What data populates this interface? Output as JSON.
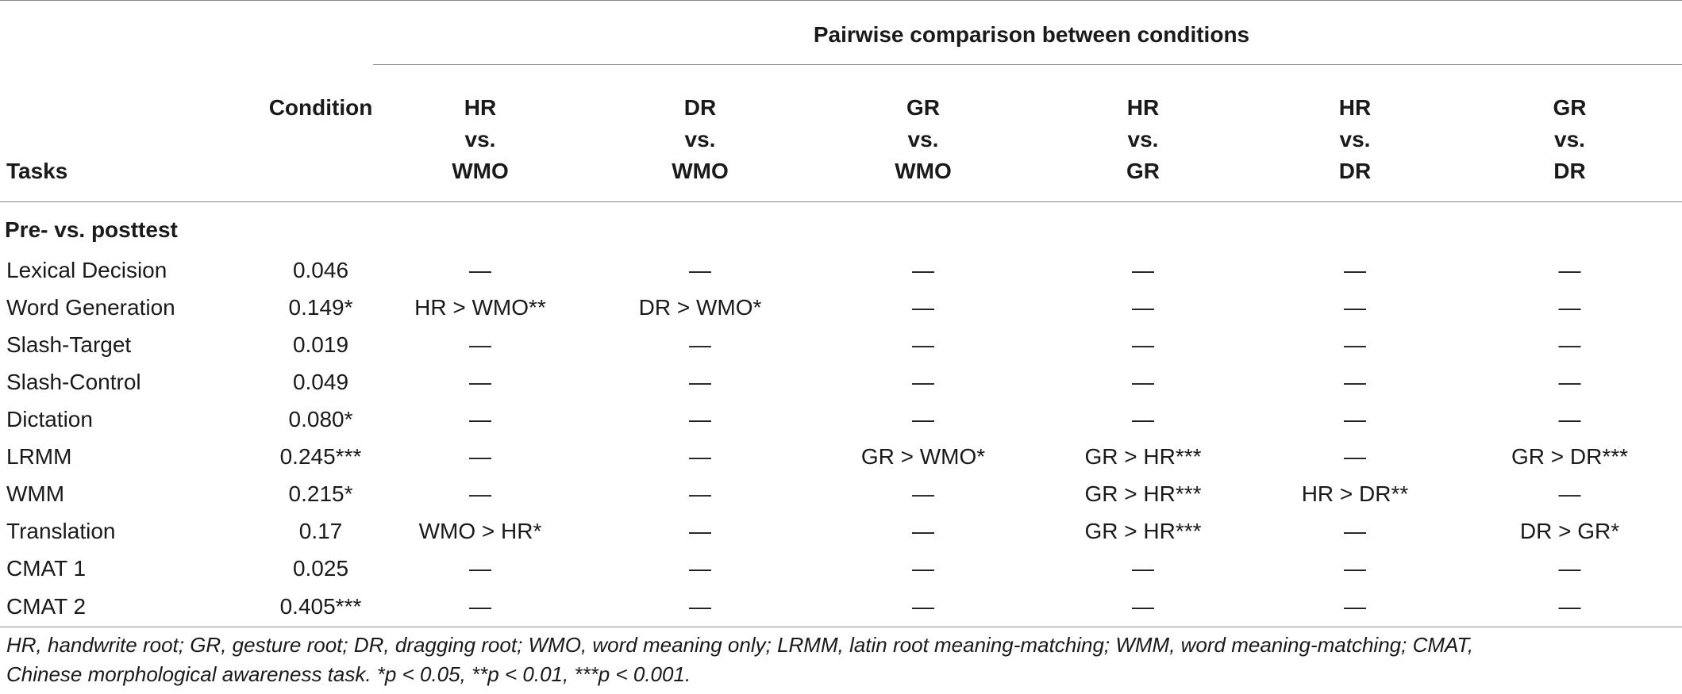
{
  "table": {
    "span_header": "Pairwise comparison between conditions",
    "tasks_header": "Tasks",
    "condition_header": "Condition",
    "comparisons": [
      {
        "line1": "HR",
        "line2": "vs.",
        "line3": "WMO"
      },
      {
        "line1": "DR",
        "line2": "vs.",
        "line3": "WMO"
      },
      {
        "line1": "GR",
        "line2": "vs.",
        "line3": "WMO"
      },
      {
        "line1": "HR",
        "line2": "vs.",
        "line3": "GR"
      },
      {
        "line1": "HR",
        "line2": "vs.",
        "line3": "DR"
      },
      {
        "line1": "GR",
        "line2": "vs.",
        "line3": "DR"
      }
    ],
    "section_label": "Pre- vs. posttest",
    "rows": [
      {
        "task": "Lexical Decision",
        "condition": "0.046",
        "cells": [
          "—",
          "—",
          "—",
          "—",
          "—",
          "—"
        ]
      },
      {
        "task": "Word Generation",
        "condition": "0.149*",
        "cells": [
          "HR > WMO**",
          "DR > WMO*",
          "—",
          "—",
          "—",
          "—"
        ]
      },
      {
        "task": "Slash-Target",
        "condition": "0.019",
        "cells": [
          "—",
          "—",
          "—",
          "—",
          "—",
          "—"
        ]
      },
      {
        "task": "Slash-Control",
        "condition": "0.049",
        "cells": [
          "—",
          "—",
          "—",
          "—",
          "—",
          "—"
        ]
      },
      {
        "task": "Dictation",
        "condition": "0.080*",
        "cells": [
          "—",
          "—",
          "—",
          "—",
          "—",
          "—"
        ]
      },
      {
        "task": "LRMM",
        "condition": "0.245***",
        "cells": [
          "—",
          "—",
          "GR > WMO*",
          "GR > HR***",
          "—",
          "GR > DR***"
        ]
      },
      {
        "task": "WMM",
        "condition": "0.215*",
        "cells": [
          "—",
          "—",
          "—",
          "GR > HR***",
          "HR > DR**",
          "—"
        ]
      },
      {
        "task": "Translation",
        "condition": "0.17",
        "cells": [
          "WMO > HR*",
          "—",
          "—",
          "GR > HR***",
          "—",
          "DR > GR*"
        ]
      },
      {
        "task": "CMAT 1",
        "condition": "0.025",
        "cells": [
          "—",
          "—",
          "—",
          "—",
          "—",
          "—"
        ]
      },
      {
        "task": "CMAT 2",
        "condition": "0.405***",
        "cells": [
          "—",
          "—",
          "—",
          "—",
          "—",
          "—"
        ]
      }
    ]
  },
  "footnote": {
    "line1": "HR, handwrite root; GR, gesture root; DR, dragging root; WMO, word meaning only; LRMM, latin root meaning-matching; WMM, word meaning-matching; CMAT,",
    "line2": "Chinese morphological awareness task. *p < 0.05, **p < 0.01, ***p < 0.001."
  }
}
